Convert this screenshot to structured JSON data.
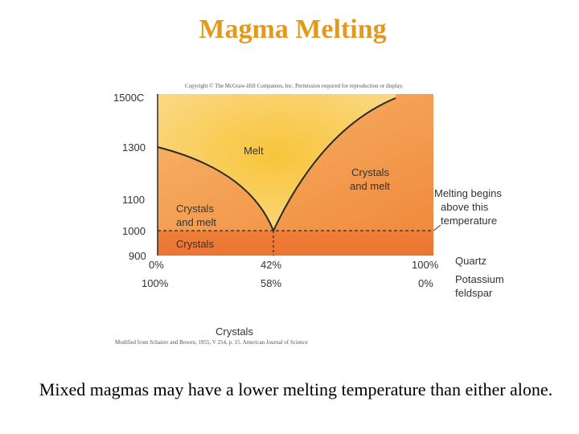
{
  "title": "Magma Melting",
  "caption": "Mixed magmas may have a lower melting temperature than either alone.",
  "figure": {
    "copyright": "Copyright © The McGraw-Hill Companies, Inc. Permission required for reproduction or display.",
    "credit": "Modified from Schairer and Bowen, 1955, V 254, p. 15. American Journal of Science",
    "y_ticks": [
      "1500C",
      "1300",
      "1100",
      "1000",
      "900"
    ],
    "regions": {
      "melt": "Melt",
      "crystals_and_melt_left": [
        "Crystals",
        "and melt"
      ],
      "crystals_and_melt_right": [
        "Crystals",
        "and melt"
      ],
      "crystals": "Crystals"
    },
    "annotation": [
      "Melting begins",
      "above this",
      "temperature"
    ],
    "quartz_row": [
      "0%",
      "42%",
      "100%"
    ],
    "feldspar_row": [
      "100%",
      "58%",
      "0%"
    ],
    "quartz_label": "Quartz",
    "feldspar_label": [
      "Potassium",
      "feldspar"
    ],
    "x_label": "Crystals",
    "colors": {
      "title": "#e39a1c",
      "melt_center": "#f7c94a",
      "crystals_melt": "#f4a45a",
      "crystals": "#ee7a36"
    }
  }
}
